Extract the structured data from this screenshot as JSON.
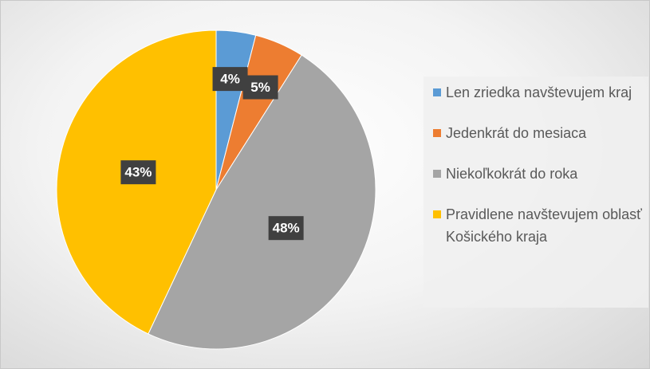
{
  "chart_data": {
    "type": "pie",
    "categories": [
      "Len zriedka navštevujem kraj",
      "Jedenkrát do mesiaca",
      "Niekoľkokrát do roka",
      "Pravidlene navštevujem oblasť Košického kraja"
    ],
    "values": [
      4,
      5,
      48,
      43
    ],
    "value_labels": [
      "4%",
      "5%",
      "48%",
      "43%"
    ],
    "colors": [
      "#5b9bd5",
      "#ed7d31",
      "#a5a5a5",
      "#ffc000"
    ],
    "legend": "right"
  }
}
